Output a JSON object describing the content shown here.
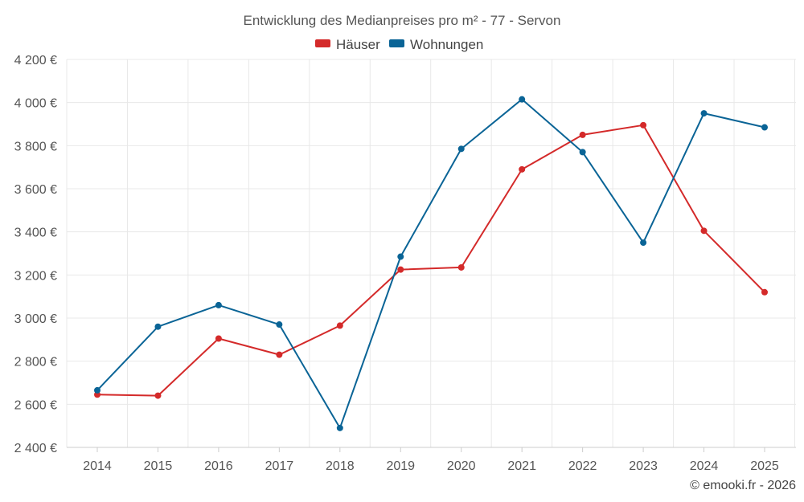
{
  "chart_data": {
    "type": "line",
    "title": "Entwicklung des Medianpreises pro m² - 77 - Servon",
    "xlabel": "",
    "ylabel": "",
    "categories": [
      "2014",
      "2015",
      "2016",
      "2017",
      "2018",
      "2019",
      "2020",
      "2021",
      "2022",
      "2023",
      "2024",
      "2025"
    ],
    "ylim": [
      2400,
      4200
    ],
    "yticks": [
      2400,
      2600,
      2800,
      3000,
      3200,
      3400,
      3600,
      3800,
      4000,
      4200
    ],
    "ytick_labels": [
      "2 400 €",
      "2 600 €",
      "2 800 €",
      "3 000 €",
      "3 200 €",
      "3 400 €",
      "3 600 €",
      "3 800 €",
      "4 000 €",
      "4 200 €"
    ],
    "grid": true,
    "legend_position": "top-center",
    "series": [
      {
        "name": "Häuser",
        "color": "#d42a2a",
        "values": [
          2645,
          2640,
          2905,
          2830,
          2965,
          3225,
          3235,
          3690,
          3850,
          3895,
          3405,
          3120
        ]
      },
      {
        "name": "Wohnungen",
        "color": "#0a6496",
        "values": [
          2665,
          2960,
          3060,
          2970,
          2490,
          3285,
          3785,
          4015,
          3770,
          3350,
          3950,
          3885
        ]
      }
    ]
  },
  "credit": "© emooki.fr - 2026"
}
